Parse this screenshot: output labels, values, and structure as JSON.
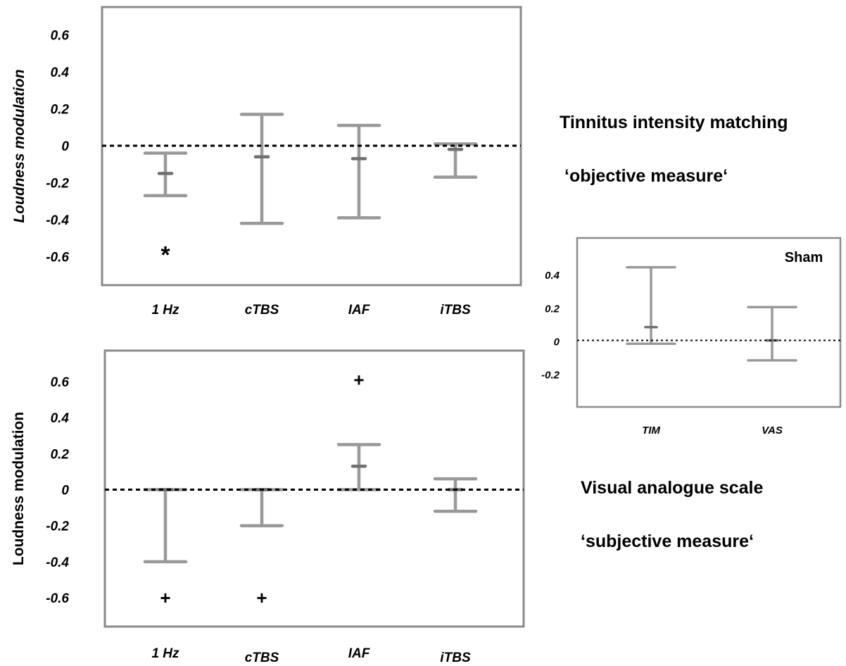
{
  "chart_data": [
    {
      "type": "errorbar",
      "id": "top",
      "ylabel": "Loudness modulation",
      "categories": [
        "1 Hz",
        "cTBS",
        "IAF",
        "iTBS"
      ],
      "ylim": [
        -0.75,
        0.75
      ],
      "yticks": [
        "0.6",
        "0.4",
        "0.2",
        "0",
        "-0.2",
        "-0.4",
        "-0.6"
      ],
      "yticks_values": [
        0.6,
        0.4,
        0.2,
        0,
        -0.2,
        -0.4,
        -0.6
      ],
      "reference_line": 0,
      "series": [
        {
          "mean": -0.15,
          "upper": -0.04,
          "lower": -0.27
        },
        {
          "mean": -0.06,
          "upper": 0.17,
          "lower": -0.42
        },
        {
          "mean": -0.07,
          "upper": 0.11,
          "lower": -0.39
        },
        {
          "mean": -0.02,
          "upper": 0.01,
          "lower": -0.17
        }
      ],
      "annotations": [
        {
          "category": "1 Hz",
          "y": -0.58,
          "text": "*"
        }
      ]
    },
    {
      "type": "errorbar",
      "id": "bottom",
      "ylabel": "Loudness modulation",
      "categories": [
        "1 Hz",
        "cTBS",
        "IAF",
        "iTBS"
      ],
      "ylim": [
        -0.75,
        0.75
      ],
      "yticks": [
        "0.6",
        "0.4",
        "0.2",
        "0",
        "-0.2",
        "-0.4",
        "-0.6"
      ],
      "yticks_values": [
        0.6,
        0.4,
        0.2,
        0,
        -0.2,
        -0.4,
        -0.6
      ],
      "reference_line": 0,
      "series": [
        {
          "mean": 0.0,
          "upper": 0.0,
          "lower": -0.4
        },
        {
          "mean": 0.0,
          "upper": 0.0,
          "lower": -0.2
        },
        {
          "mean": 0.13,
          "upper": 0.25,
          "lower": 0.0
        },
        {
          "mean": 0.0,
          "upper": 0.06,
          "lower": -0.12
        }
      ],
      "annotations": [
        {
          "category": "1 Hz",
          "y": -0.6,
          "text": "+"
        },
        {
          "category": "cTBS",
          "y": -0.6,
          "text": "+"
        },
        {
          "category": "IAF",
          "y": 0.61,
          "text": "+"
        }
      ]
    },
    {
      "type": "errorbar",
      "id": "inset",
      "title": "Sham",
      "categories": [
        "TIM",
        "VAS"
      ],
      "ylim": [
        -0.4,
        0.6
      ],
      "yticks": [
        "0.4",
        "0.2",
        "0",
        "-0.2"
      ],
      "yticks_values": [
        0.4,
        0.2,
        0,
        -0.2
      ],
      "reference_line": 0,
      "series": [
        {
          "mean": 0.08,
          "upper": 0.44,
          "lower": -0.02
        },
        {
          "mean": 0.0,
          "upper": 0.2,
          "lower": -0.12
        }
      ],
      "annotations": []
    }
  ],
  "side_labels": {
    "tim_title": "Tinnitus intensity matching",
    "tim_subtitle": "‘objective measure‘",
    "vas_title": "Visual analogue scale",
    "vas_subtitle": "‘subjective measure‘"
  },
  "colors": {
    "errorbar": "#999999",
    "mean_mark": "#707070",
    "frame": "#8a8a8a",
    "reference": "#000000"
  }
}
